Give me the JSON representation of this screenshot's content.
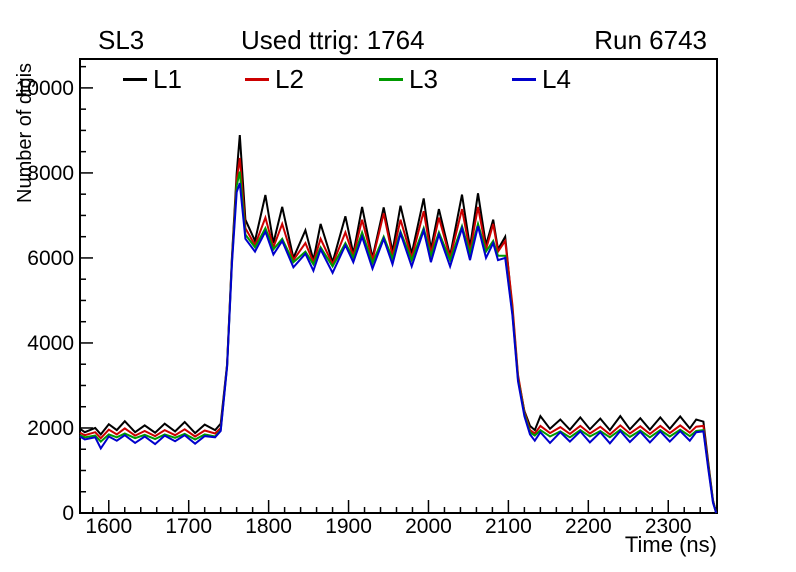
{
  "header": {
    "left": "SL3",
    "center": "Used ttrig: 1764",
    "right": "Run 6743"
  },
  "colors": {
    "frame": "#000000",
    "background": "#ffffff",
    "l1": "#000000",
    "l2": "#cc0000",
    "l3": "#009900",
    "l4": "#0000cc"
  },
  "chart_data": {
    "type": "line",
    "title": "SL3  Used ttrig: 1764  Run 6743",
    "xlabel": "Time (ns)",
    "ylabel": "Number of digis",
    "xlim": [
      1564,
      2361
    ],
    "ylim": [
      0,
      10680
    ],
    "x_major_ticks": [
      1600,
      1700,
      1800,
      1900,
      2000,
      2100,
      2200,
      2300
    ],
    "x_minor_step": 20,
    "y_major_ticks": [
      0,
      2000,
      4000,
      6000,
      8000,
      10000
    ],
    "y_minor_step": 500,
    "grid": false,
    "legend_position": "top-inside",
    "x": [
      1564,
      1570,
      1583,
      1590,
      1600,
      1610,
      1620,
      1633,
      1645,
      1658,
      1670,
      1683,
      1695,
      1708,
      1720,
      1733,
      1740,
      1748,
      1754,
      1760,
      1764,
      1771,
      1783,
      1796,
      1806,
      1817,
      1831,
      1846,
      1856,
      1865,
      1880,
      1896,
      1906,
      1917,
      1930,
      1944,
      1955,
      1965,
      1979,
      1994,
      2003,
      2013,
      2027,
      2042,
      2052,
      2062,
      2072,
      2081,
      2087,
      2096,
      2105,
      2112,
      2120,
      2127,
      2133,
      2140,
      2152,
      2165,
      2177,
      2190,
      2202,
      2215,
      2227,
      2240,
      2252,
      2265,
      2277,
      2290,
      2302,
      2315,
      2327,
      2335,
      2344,
      2350,
      2356,
      2360
    ],
    "series": [
      {
        "name": "L1",
        "color": "#000000",
        "values": [
          1980,
          1900,
          2000,
          1850,
          2090,
          1950,
          2160,
          1900,
          2060,
          1890,
          2100,
          1920,
          2140,
          1880,
          2080,
          1950,
          2100,
          3500,
          6000,
          8000,
          8890,
          6900,
          6400,
          7480,
          6350,
          7200,
          6000,
          6650,
          5950,
          6800,
          5900,
          6980,
          6100,
          7200,
          6000,
          7190,
          6150,
          7230,
          6100,
          7400,
          6200,
          7150,
          6050,
          7490,
          6250,
          7520,
          6300,
          6900,
          6200,
          6500,
          4800,
          3200,
          2400,
          2050,
          1950,
          2280,
          1980,
          2200,
          1960,
          2250,
          1970,
          2220,
          1950,
          2280,
          1970,
          2230,
          1960,
          2250,
          1980,
          2270,
          1990,
          2200,
          2150,
          1200,
          300,
          0
        ]
      },
      {
        "name": "L2",
        "color": "#cc0000",
        "values": [
          1890,
          1830,
          1900,
          1760,
          1960,
          1850,
          1990,
          1820,
          1930,
          1810,
          1950,
          1830,
          1970,
          1800,
          1940,
          1870,
          2000,
          3480,
          5950,
          7850,
          8350,
          6700,
          6300,
          6950,
          6250,
          6800,
          5950,
          6350,
          5900,
          6450,
          5850,
          6600,
          6050,
          6900,
          5950,
          7050,
          6050,
          6900,
          6000,
          7100,
          6100,
          6950,
          6000,
          7150,
          6150,
          7200,
          6200,
          6800,
          6150,
          6400,
          4900,
          3250,
          2380,
          1950,
          1870,
          2050,
          1880,
          2020,
          1860,
          2050,
          1870,
          2030,
          1850,
          2060,
          1870,
          2040,
          1860,
          2050,
          1880,
          2060,
          1890,
          2030,
          2050,
          1150,
          280,
          0
        ]
      },
      {
        "name": "L3",
        "color": "#009900",
        "values": [
          1830,
          1780,
          1820,
          1680,
          1850,
          1780,
          1870,
          1760,
          1840,
          1740,
          1850,
          1770,
          1860,
          1730,
          1850,
          1800,
          1950,
          3460,
          5900,
          7700,
          8030,
          6550,
          6250,
          6700,
          6200,
          6450,
          5900,
          6150,
          5850,
          6250,
          5800,
          6350,
          6000,
          6600,
          5880,
          6500,
          5980,
          6620,
          5950,
          6700,
          6050,
          6600,
          5950,
          6750,
          6100,
          6800,
          6150,
          6400,
          6050,
          6050,
          4700,
          3150,
          2330,
          1900,
          1820,
          1950,
          1800,
          1920,
          1780,
          1950,
          1800,
          1930,
          1780,
          1960,
          1790,
          1940,
          1780,
          1950,
          1800,
          1960,
          1810,
          1930,
          1950,
          1100,
          260,
          0
        ]
      },
      {
        "name": "L4",
        "color": "#0000cc",
        "values": [
          1800,
          1730,
          1780,
          1520,
          1800,
          1700,
          1830,
          1650,
          1800,
          1620,
          1820,
          1690,
          1830,
          1630,
          1810,
          1780,
          1930,
          3440,
          5850,
          7550,
          7760,
          6450,
          6150,
          6620,
          6080,
          6400,
          5780,
          6100,
          5700,
          6200,
          5650,
          6300,
          5900,
          6500,
          5750,
          6450,
          5850,
          6580,
          5800,
          6650,
          5900,
          6550,
          5800,
          6700,
          5950,
          6750,
          6000,
          6350,
          5950,
          6000,
          4650,
          3100,
          2280,
          1850,
          1700,
          1900,
          1650,
          1900,
          1680,
          1920,
          1660,
          1900,
          1640,
          1930,
          1670,
          1910,
          1660,
          1920,
          1680,
          1930,
          1700,
          1900,
          1920,
          1050,
          240,
          0
        ]
      }
    ]
  }
}
